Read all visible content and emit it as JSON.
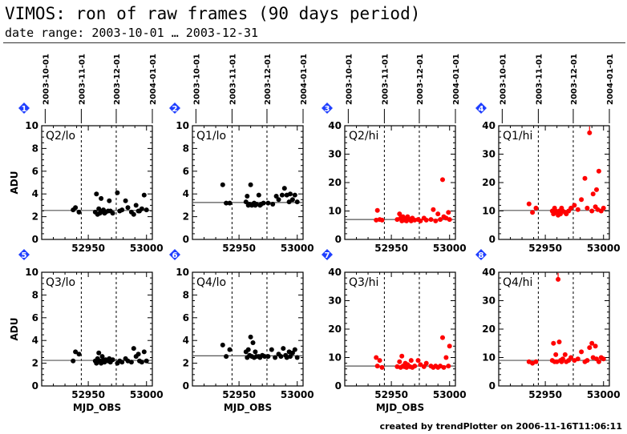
{
  "header": {
    "title": "VIMOS: ron of raw frames (90 days period)",
    "subtitle": "date range: 2003-10-01 … 2003-12-31"
  },
  "footer": {
    "text": "created by trendPlotter on 2006-11-16T11:06:11"
  },
  "colors": {
    "lo": "#000000",
    "hi": "#ff0000",
    "badge": "#1f3fff"
  },
  "chart_data": [
    {
      "id": "1",
      "type": "scatter",
      "label": "Q2/lo",
      "ylabel": "ADU",
      "xlabel": "",
      "xlim": [
        52910,
        53005
      ],
      "ylim": [
        0,
        10
      ],
      "yticks": [
        0,
        2,
        4,
        6,
        8,
        10
      ],
      "xticks": [
        52950,
        53000
      ],
      "date_ticks": [
        {
          "label": "2003-10-01",
          "x": 52913
        },
        {
          "label": "2003-11-01",
          "x": 52944
        },
        {
          "label": "2003-12-01",
          "x": 52974
        },
        {
          "label": "2004-01-01",
          "x": 53005
        }
      ],
      "refline": 2.55,
      "x": [
        52937,
        52939,
        52942,
        52956,
        52957,
        52958,
        52959,
        52960,
        52961,
        52962,
        52963,
        52964,
        52965,
        52967,
        52968,
        52969,
        52971,
        52975,
        52977,
        52979,
        52982,
        52984,
        52987,
        52989,
        52991,
        52993,
        52994,
        52996,
        52998,
        53000
      ],
      "y": [
        2.6,
        2.8,
        2.4,
        2.4,
        4.0,
        2.2,
        2.7,
        2.3,
        3.6,
        2.5,
        2.6,
        2.3,
        2.4,
        2.5,
        3.4,
        2.5,
        2.3,
        4.1,
        2.5,
        2.6,
        3.4,
        2.8,
        2.4,
        2.2,
        3.0,
        2.5,
        2.5,
        2.7,
        3.9,
        2.6
      ]
    },
    {
      "id": "2",
      "type": "scatter",
      "label": "Q1/lo",
      "ylabel": "",
      "xlabel": "",
      "xlim": [
        52910,
        53005
      ],
      "ylim": [
        0,
        10
      ],
      "yticks": [
        0,
        2,
        4,
        6,
        8,
        10
      ],
      "xticks": [
        52950,
        53000
      ],
      "date_ticks": [
        {
          "label": "2003-10-01",
          "x": 52913
        },
        {
          "label": "2003-11-01",
          "x": 52944
        },
        {
          "label": "2003-12-01",
          "x": 52974
        },
        {
          "label": "2004-01-01",
          "x": 53005
        }
      ],
      "refline": 3.25,
      "x": [
        52936,
        52939,
        52942,
        52956,
        52957,
        52958,
        52959,
        52960,
        52961,
        52962,
        52963,
        52964,
        52965,
        52967,
        52968,
        52969,
        52971,
        52975,
        52979,
        52982,
        52984,
        52987,
        52989,
        52991,
        52993,
        52994,
        52996,
        52998,
        53000
      ],
      "y": [
        4.8,
        3.2,
        3.2,
        3.3,
        3.8,
        3.0,
        3.1,
        4.8,
        3.0,
        3.1,
        3.2,
        3.0,
        3.1,
        3.9,
        3.0,
        3.1,
        3.2,
        3.2,
        3.1,
        3.8,
        3.5,
        3.9,
        4.5,
        3.9,
        3.3,
        4.0,
        3.5,
        3.9,
        3.3
      ]
    },
    {
      "id": "3",
      "type": "scatter",
      "label": "Q2/hi",
      "ylabel": "",
      "xlabel": "",
      "xlim": [
        52910,
        53005
      ],
      "ylim": [
        0,
        40
      ],
      "yticks": [
        0,
        10,
        20,
        30,
        40
      ],
      "xticks": [
        52950,
        53000
      ],
      "date_ticks": [
        {
          "label": "2003-10-01",
          "x": 52913
        },
        {
          "label": "2003-11-01",
          "x": 52944
        },
        {
          "label": "2003-12-01",
          "x": 52974
        },
        {
          "label": "2004-01-01",
          "x": 53005
        }
      ],
      "refline": 7.0,
      "x": [
        52937,
        52938,
        52940,
        52942,
        52955,
        52957,
        52958,
        52959,
        52960,
        52961,
        52962,
        52963,
        52964,
        52966,
        52967,
        52968,
        52970,
        52973,
        52975,
        52978,
        52980,
        52984,
        52986,
        52988,
        52990,
        52992,
        52994,
        52995,
        52997,
        52999,
        53000
      ],
      "y": [
        6.8,
        10.2,
        7.0,
        6.8,
        7.0,
        9.0,
        7.5,
        6.5,
        8.0,
        6.8,
        7.0,
        6.5,
        8.0,
        7.0,
        6.5,
        7.5,
        6.8,
        7.0,
        6.5,
        7.5,
        6.8,
        7.0,
        10.5,
        6.5,
        9.0,
        7.0,
        21.0,
        8.0,
        7.5,
        9.5,
        7.0
      ]
    },
    {
      "id": "4",
      "type": "scatter",
      "label": "Q1/hi",
      "ylabel": "",
      "xlabel": "",
      "xlim": [
        52910,
        53005
      ],
      "ylim": [
        0,
        40
      ],
      "yticks": [
        0,
        10,
        20,
        30,
        40
      ],
      "xticks": [
        52950,
        53000
      ],
      "date_ticks": [
        {
          "label": "2003-10-01",
          "x": 52913
        },
        {
          "label": "2003-11-01",
          "x": 52944
        },
        {
          "label": "2003-12-01",
          "x": 52974
        },
        {
          "label": "2004-01-01",
          "x": 53005
        }
      ],
      "refline": 10.2,
      "x": [
        52936,
        52939,
        52942,
        52956,
        52957,
        52958,
        52959,
        52960,
        52961,
        52962,
        52963,
        52964,
        52965,
        52967,
        52968,
        52970,
        52972,
        52975,
        52978,
        52981,
        52984,
        52986,
        52988,
        52990,
        52991,
        52993,
        52994,
        52995,
        52996,
        52998,
        53000
      ],
      "y": [
        12.5,
        9.5,
        11.0,
        10.0,
        9.0,
        11.0,
        10.0,
        9.5,
        8.5,
        10.0,
        9.0,
        11.0,
        10.0,
        9.5,
        9.0,
        10.0,
        11.0,
        12.0,
        10.5,
        14.0,
        21.5,
        11.0,
        37.5,
        10.0,
        16.0,
        11.5,
        17.5,
        10.5,
        24.0,
        10.0,
        11.0
      ]
    },
    {
      "id": "5",
      "type": "scatter",
      "label": "Q3/lo",
      "ylabel": "ADU",
      "xlabel": "MJD_OBS",
      "xlim": [
        52910,
        53005
      ],
      "ylim": [
        0,
        10
      ],
      "yticks": [
        0,
        2,
        4,
        6,
        8,
        10
      ],
      "xticks": [
        52950,
        53000
      ],
      "date_ticks": [],
      "refline": 2.25,
      "x": [
        52937,
        52939,
        52942,
        52956,
        52957,
        52958,
        52959,
        52960,
        52961,
        52962,
        52963,
        52964,
        52965,
        52967,
        52968,
        52969,
        52971,
        52975,
        52977,
        52979,
        52982,
        52984,
        52987,
        52989,
        52991,
        52993,
        52994,
        52996,
        52998,
        53000
      ],
      "y": [
        2.2,
        3.0,
        2.8,
        2.2,
        2.0,
        2.4,
        2.9,
        2.2,
        2.0,
        2.6,
        2.3,
        2.1,
        2.3,
        2.2,
        2.4,
        2.1,
        2.3,
        2.0,
        2.2,
        2.1,
        2.4,
        2.2,
        2.1,
        3.3,
        2.6,
        2.8,
        2.2,
        2.1,
        3.0,
        2.2
      ]
    },
    {
      "id": "6",
      "type": "scatter",
      "label": "Q4/lo",
      "ylabel": "",
      "xlabel": "MJD_OBS",
      "xlim": [
        52910,
        53005
      ],
      "ylim": [
        0,
        10
      ],
      "yticks": [
        0,
        2,
        4,
        6,
        8,
        10
      ],
      "xticks": [
        52950,
        53000
      ],
      "date_ticks": [],
      "refline": 2.65,
      "x": [
        52936,
        52939,
        52942,
        52956,
        52957,
        52958,
        52959,
        52960,
        52961,
        52962,
        52963,
        52964,
        52965,
        52967,
        52968,
        52970,
        52972,
        52975,
        52978,
        52981,
        52984,
        52986,
        52988,
        52990,
        52991,
        52993,
        52994,
        52996,
        52998,
        53000
      ],
      "y": [
        3.6,
        2.6,
        3.2,
        3.0,
        2.5,
        3.2,
        2.7,
        4.3,
        2.6,
        3.8,
        2.5,
        3.0,
        2.6,
        2.6,
        2.5,
        2.7,
        2.6,
        2.6,
        3.2,
        2.5,
        2.8,
        2.6,
        3.3,
        2.7,
        2.5,
        3.0,
        2.6,
        2.9,
        3.2,
        2.5
      ]
    },
    {
      "id": "7",
      "type": "scatter",
      "label": "Q3/hi",
      "ylabel": "",
      "xlabel": "MJD_OBS",
      "xlim": [
        52910,
        53005
      ],
      "ylim": [
        0,
        40
      ],
      "yticks": [
        0,
        10,
        20,
        30,
        40
      ],
      "xticks": [
        52950,
        53000
      ],
      "date_ticks": [],
      "refline": 7.0,
      "x": [
        52937,
        52938,
        52940,
        52942,
        52955,
        52957,
        52958,
        52959,
        52960,
        52961,
        52962,
        52963,
        52964,
        52966,
        52967,
        52968,
        52970,
        52973,
        52975,
        52978,
        52980,
        52984,
        52986,
        52988,
        52990,
        52992,
        52994,
        52995,
        52997,
        52999,
        53000
      ],
      "y": [
        10.0,
        7.0,
        9.0,
        6.5,
        6.8,
        8.5,
        6.5,
        10.5,
        7.0,
        6.8,
        8.0,
        6.5,
        7.5,
        6.8,
        9.0,
        6.5,
        7.0,
        9.0,
        7.5,
        6.8,
        8.0,
        7.0,
        6.5,
        7.0,
        6.5,
        7.0,
        17.0,
        6.5,
        10.0,
        7.0,
        14.0
      ]
    },
    {
      "id": "8",
      "type": "scatter",
      "label": "Q4/hi",
      "ylabel": "",
      "xlabel": "",
      "xlim": [
        52910,
        53005
      ],
      "ylim": [
        0,
        40
      ],
      "yticks": [
        0,
        10,
        20,
        30,
        40
      ],
      "xticks": [
        52950,
        53000
      ],
      "date_ticks": [],
      "refline": 9.0,
      "x": [
        52936,
        52939,
        52942,
        52956,
        52957,
        52958,
        52959,
        52960,
        52961,
        52962,
        52963,
        52964,
        52965,
        52967,
        52968,
        52970,
        52972,
        52975,
        52978,
        52981,
        52984,
        52986,
        52988,
        52990,
        52991,
        52993,
        52994,
        52996,
        52998,
        53000
      ],
      "y": [
        8.5,
        8.0,
        8.5,
        9.0,
        15.0,
        8.5,
        11.0,
        8.5,
        37.5,
        15.5,
        9.0,
        8.5,
        9.5,
        11.0,
        8.5,
        9.0,
        10.0,
        9.0,
        9.5,
        12.0,
        8.5,
        9.0,
        13.5,
        15.0,
        10.0,
        14.0,
        9.5,
        8.5,
        10.0,
        9.5
      ]
    }
  ]
}
